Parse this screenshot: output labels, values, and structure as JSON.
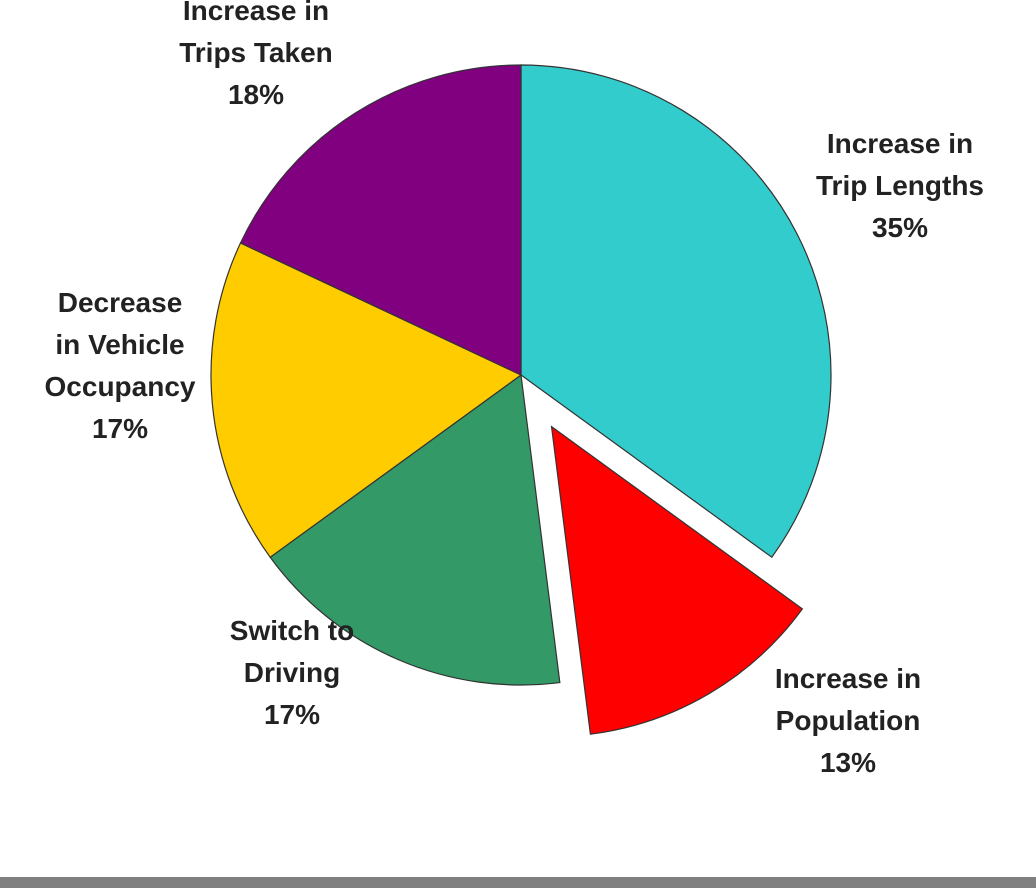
{
  "chart_data": {
    "type": "pie",
    "title": "",
    "start_angle_deg": 0,
    "direction": "clockwise",
    "slices": [
      {
        "key": "trip-lengths",
        "lines": [
          "Increase in",
          "Trip Lengths"
        ],
        "pct_label": "35%",
        "value": 35,
        "color": "#33CCCC",
        "exploded": false
      },
      {
        "key": "population",
        "lines": [
          "Increase in",
          "Population"
        ],
        "pct_label": "13%",
        "value": 13,
        "color": "#FF0000",
        "exploded": true
      },
      {
        "key": "switch-to-driving",
        "lines": [
          "Switch to",
          "Driving"
        ],
        "pct_label": "17%",
        "value": 17,
        "color": "#339966",
        "exploded": false
      },
      {
        "key": "vehicle-occupancy",
        "lines": [
          "Decrease",
          "in Vehicle",
          "Occupancy"
        ],
        "pct_label": "17%",
        "value": 17,
        "color": "#FFCC00",
        "exploded": false
      },
      {
        "key": "trips-taken",
        "lines": [
          "Increase in",
          "Trips Taken"
        ],
        "pct_label": "18%",
        "value": 18,
        "color": "#800080",
        "exploded": false
      }
    ]
  },
  "footer_bar_color": "#808080"
}
